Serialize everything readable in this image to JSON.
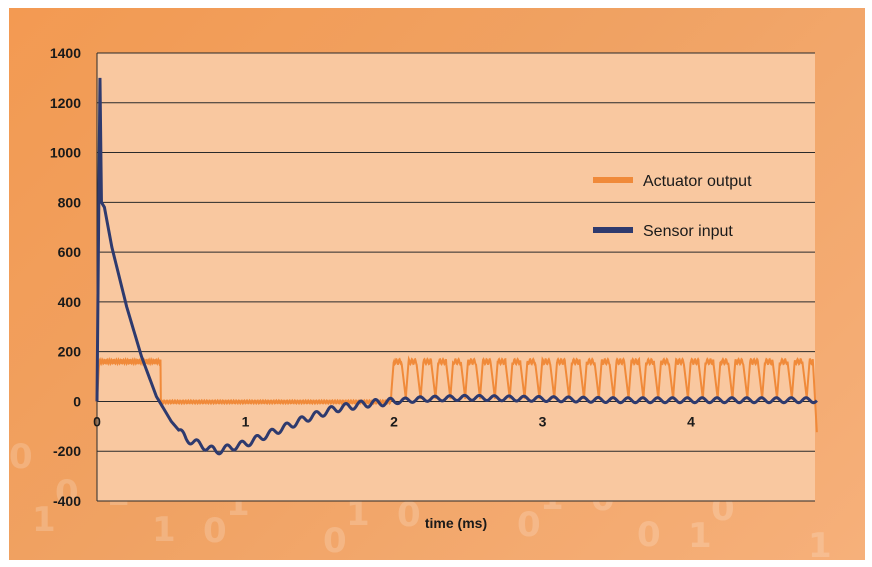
{
  "chart_data": {
    "type": "line",
    "title": "",
    "xlabel": "time (ms)",
    "ylabel": "",
    "xlim": [
      0,
      4.85
    ],
    "ylim": [
      -400,
      1400
    ],
    "y_ticks": [
      1400,
      1200,
      1000,
      800,
      600,
      400,
      200,
      0,
      -200,
      -400
    ],
    "x_ticks": [
      0,
      1,
      2,
      3,
      4
    ],
    "grid": "horizontal",
    "legend_position": "right",
    "series": [
      {
        "name": "Actuator output",
        "color": "#f08a3a",
        "x": [
          0,
          0.02,
          0.1,
          0.2,
          0.3,
          0.42,
          0.44,
          0.5,
          0.6,
          0.8,
          1.0,
          1.2,
          1.4,
          1.6,
          1.8,
          1.95,
          2.0,
          2.05,
          2.1,
          2.2,
          2.5,
          3.0,
          3.5,
          4.0,
          4.5,
          4.8,
          4.85
        ],
        "values": [
          0,
          160,
          160,
          160,
          150,
          160,
          0,
          -5,
          0,
          0,
          0,
          0,
          0,
          0,
          0,
          0,
          130,
          50,
          160,
          100,
          170,
          170,
          170,
          170,
          170,
          170,
          -150
        ],
        "pattern": "square wave about 0–180 from 2.0 to 4.85 ms, period ~0.1 ms"
      },
      {
        "name": "Sensor input",
        "color": "#2e3a6e",
        "x": [
          0,
          0.02,
          0.03,
          0.05,
          0.1,
          0.2,
          0.3,
          0.4,
          0.5,
          0.6,
          0.8,
          1.0,
          1.2,
          1.4,
          1.6,
          1.8,
          2.0,
          2.2,
          2.5,
          3.0,
          3.5,
          4.0,
          4.5,
          4.85
        ],
        "values": [
          0,
          1300,
          800,
          780,
          620,
          380,
          180,
          20,
          -80,
          -150,
          -200,
          -170,
          -120,
          -70,
          -30,
          -10,
          0,
          10,
          15,
          10,
          5,
          5,
          5,
          5
        ],
        "pattern": "decaying oscillation, small ripple ~0.1 ms period after 0.6 ms"
      }
    ]
  }
}
